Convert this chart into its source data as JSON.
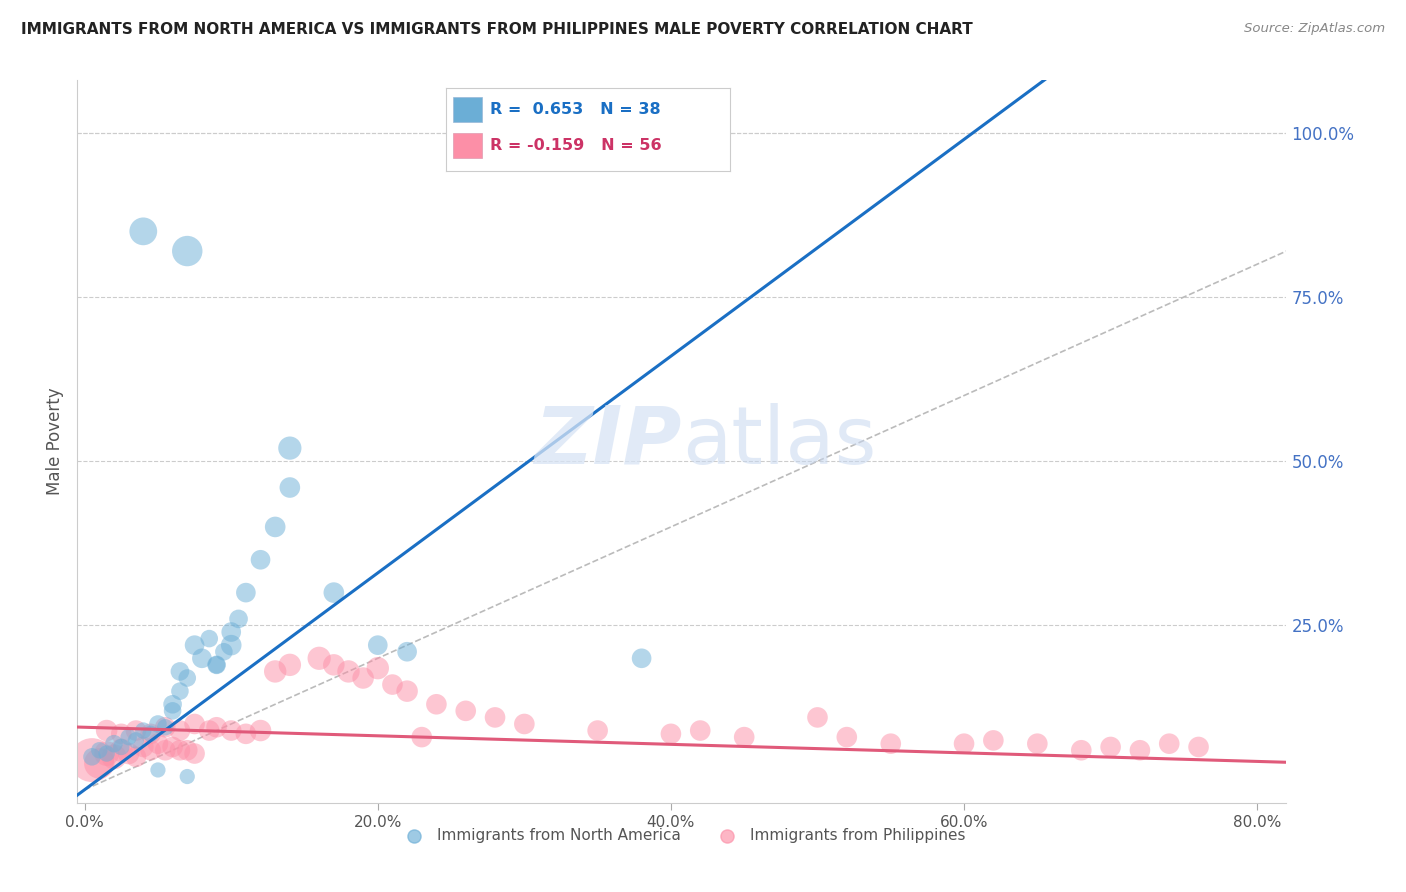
{
  "title": "IMMIGRANTS FROM NORTH AMERICA VS IMMIGRANTS FROM PHILIPPINES MALE POVERTY CORRELATION CHART",
  "source": "Source: ZipAtlas.com",
  "ylabel": "Male Poverty",
  "xlim": [
    -0.005,
    0.82
  ],
  "ylim": [
    -0.02,
    1.08
  ],
  "xtick_labels": [
    "0.0%",
    "20.0%",
    "40.0%",
    "60.0%",
    "80.0%"
  ],
  "xtick_vals": [
    0.0,
    0.2,
    0.4,
    0.6,
    0.8
  ],
  "ytick_labels": [
    "100.0%",
    "75.0%",
    "50.0%",
    "25.0%"
  ],
  "ytick_vals": [
    1.0,
    0.75,
    0.5,
    0.25
  ],
  "blue_R": 0.653,
  "blue_N": 38,
  "pink_R": -0.159,
  "pink_N": 56,
  "blue_color": "#6baed6",
  "pink_color": "#fc8fa7",
  "blue_line_color": "#1a6fc4",
  "pink_line_color": "#e05a7a",
  "diagonal_color": "#bbbbbb",
  "watermark": "ZIPatlas",
  "blue_scatter_x": [
    0.005,
    0.01,
    0.015,
    0.02,
    0.025,
    0.03,
    0.035,
    0.04,
    0.045,
    0.05,
    0.055,
    0.06,
    0.065,
    0.065,
    0.07,
    0.075,
    0.08,
    0.085,
    0.09,
    0.095,
    0.1,
    0.105,
    0.11,
    0.12,
    0.13,
    0.14,
    0.07,
    0.14,
    0.17,
    0.2,
    0.22,
    0.38,
    0.1,
    0.04,
    0.06,
    0.09,
    0.07,
    0.05
  ],
  "blue_scatter_y": [
    0.05,
    0.06,
    0.055,
    0.07,
    0.065,
    0.08,
    0.075,
    0.09,
    0.085,
    0.1,
    0.095,
    0.12,
    0.15,
    0.18,
    0.17,
    0.22,
    0.2,
    0.23,
    0.19,
    0.21,
    0.24,
    0.26,
    0.3,
    0.35,
    0.4,
    0.46,
    0.82,
    0.52,
    0.3,
    0.22,
    0.21,
    0.2,
    0.22,
    0.85,
    0.13,
    0.19,
    0.02,
    0.03
  ],
  "blue_scatter_size": [
    40,
    35,
    35,
    40,
    35,
    35,
    35,
    35,
    35,
    40,
    35,
    40,
    40,
    45,
    40,
    50,
    50,
    40,
    40,
    40,
    50,
    45,
    50,
    50,
    55,
    55,
    120,
    70,
    55,
    50,
    50,
    50,
    55,
    100,
    45,
    45,
    30,
    30
  ],
  "pink_scatter_x": [
    0.005,
    0.01,
    0.015,
    0.02,
    0.025,
    0.03,
    0.035,
    0.04,
    0.045,
    0.05,
    0.055,
    0.06,
    0.065,
    0.07,
    0.075,
    0.015,
    0.025,
    0.035,
    0.045,
    0.055,
    0.065,
    0.075,
    0.085,
    0.09,
    0.1,
    0.11,
    0.12,
    0.13,
    0.14,
    0.16,
    0.18,
    0.2,
    0.22,
    0.24,
    0.26,
    0.28,
    0.3,
    0.35,
    0.4,
    0.42,
    0.45,
    0.5,
    0.52,
    0.55,
    0.6,
    0.62,
    0.65,
    0.68,
    0.7,
    0.72,
    0.74,
    0.76,
    0.17,
    0.19,
    0.21,
    0.23
  ],
  "pink_scatter_y": [
    0.045,
    0.04,
    0.055,
    0.05,
    0.06,
    0.055,
    0.05,
    0.065,
    0.06,
    0.07,
    0.06,
    0.065,
    0.06,
    0.06,
    0.055,
    0.09,
    0.085,
    0.09,
    0.085,
    0.095,
    0.09,
    0.1,
    0.09,
    0.095,
    0.09,
    0.085,
    0.09,
    0.18,
    0.19,
    0.2,
    0.18,
    0.185,
    0.15,
    0.13,
    0.12,
    0.11,
    0.1,
    0.09,
    0.085,
    0.09,
    0.08,
    0.11,
    0.08,
    0.07,
    0.07,
    0.075,
    0.07,
    0.06,
    0.065,
    0.06,
    0.07,
    0.065,
    0.19,
    0.17,
    0.16,
    0.08
  ],
  "pink_scatter_size": [
    250,
    120,
    80,
    80,
    70,
    60,
    55,
    55,
    55,
    55,
    55,
    55,
    55,
    55,
    55,
    60,
    55,
    55,
    55,
    55,
    55,
    55,
    55,
    55,
    55,
    55,
    60,
    65,
    65,
    70,
    65,
    65,
    60,
    55,
    55,
    55,
    55,
    55,
    55,
    55,
    55,
    55,
    55,
    55,
    55,
    55,
    55,
    55,
    55,
    55,
    55,
    55,
    60,
    60,
    55,
    55
  ],
  "blue_line_x0": 0.0,
  "blue_line_y0": 0.0,
  "blue_line_slope": 1.65,
  "pink_line_x0": 0.0,
  "pink_line_y0": 0.095,
  "pink_line_slope": -0.065
}
